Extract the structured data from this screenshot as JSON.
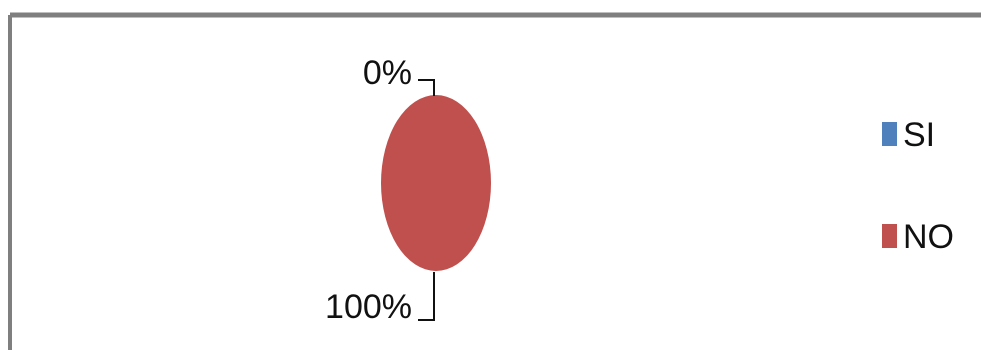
{
  "chart_data": {
    "type": "pie",
    "categories": [
      "SI",
      "NO"
    ],
    "values": [
      0,
      100
    ],
    "data_labels": [
      "0%",
      "100%"
    ],
    "legend": [
      "SI",
      "NO"
    ],
    "legend_placement": "right",
    "colors": [
      "#4f81bd",
      "#c0504d"
    ],
    "title": ""
  }
}
